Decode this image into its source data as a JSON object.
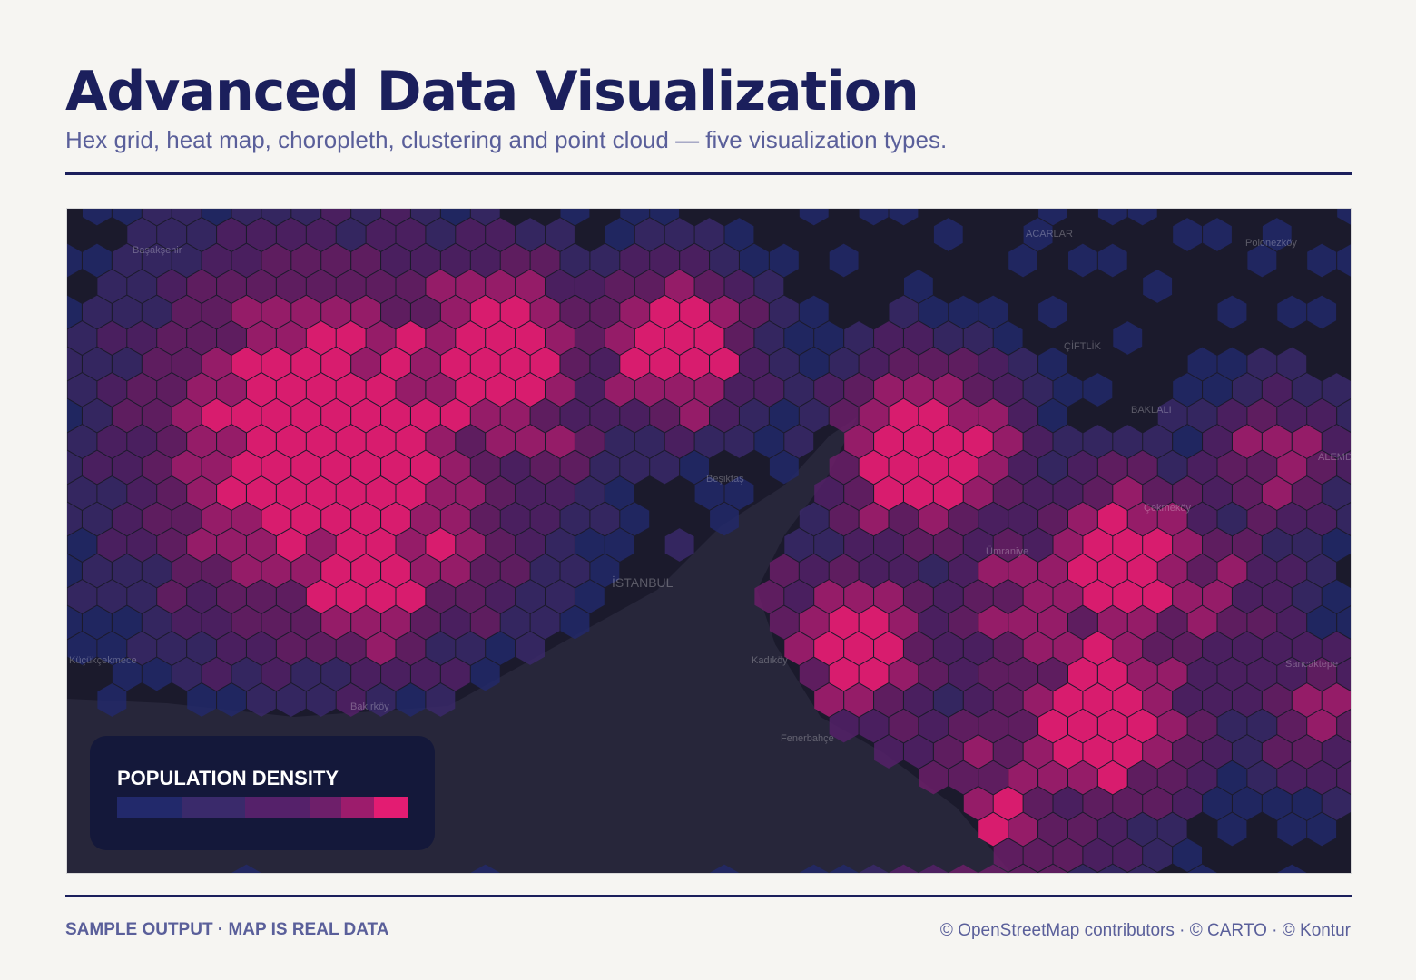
{
  "header": {
    "title": "Advanced Data Visualization",
    "subtitle": "Hex grid, heat map, choropleth, clustering and point cloud — five visualization types."
  },
  "map": {
    "type": "hex-grid",
    "theme_colors": {
      "background": "#1b1a2c",
      "sea": "#27263a"
    },
    "place_labels": [
      "Başakşehir",
      "Polonezköy",
      "Beşiktaş",
      "İSTANBUL",
      "Bakırköy",
      "Küçükçekmece",
      "Kadıköy",
      "Fenerbahçe",
      "Sancaktepe",
      "Çekmeköy",
      "Ümraniye",
      "ACARLAR",
      "ÇİFTLİK",
      "BAKLALI",
      "ALEMDAĞ"
    ],
    "legend": {
      "title": "POPULATION DENSITY",
      "ramp": [
        {
          "color": "#22296b",
          "share": 22
        },
        {
          "color": "#3a2a6b",
          "share": 22
        },
        {
          "color": "#55216a",
          "share": 22
        },
        {
          "color": "#6e1f6a",
          "share": 11
        },
        {
          "color": "#9c1c6c",
          "share": 11
        },
        {
          "color": "#e31c72",
          "share": 12
        }
      ]
    }
  },
  "footer": {
    "left": "SAMPLE OUTPUT · MAP IS REAL DATA",
    "right": "© OpenStreetMap contributors · © CARTO · © Kontur"
  }
}
